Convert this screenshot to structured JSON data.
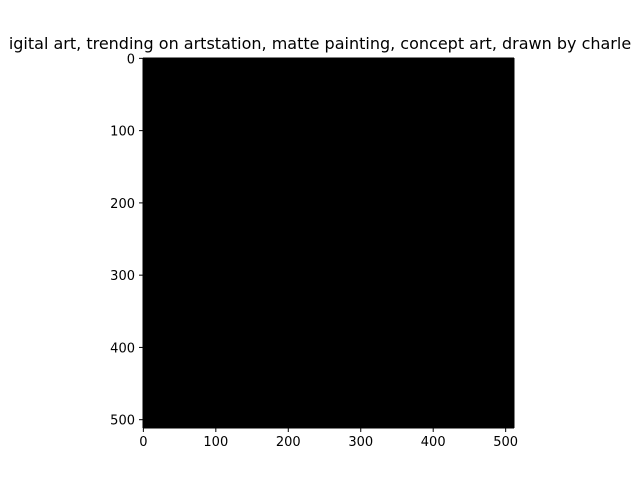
{
  "chart_data": {
    "type": "heatmap",
    "title": "igital art, trending on artstation, matte painting, concept art, drawn by charle",
    "xlabel": "",
    "ylabel": "",
    "xlim": [
      -0.5,
      511.5
    ],
    "ylim": [
      511.5,
      -0.5
    ],
    "x_ticks": [
      0,
      100,
      200,
      300,
      400,
      500
    ],
    "y_ticks": [
      0,
      100,
      200,
      300,
      400,
      500
    ],
    "image_size": [
      512,
      512
    ],
    "fill_color": "#000000",
    "grid": false
  }
}
